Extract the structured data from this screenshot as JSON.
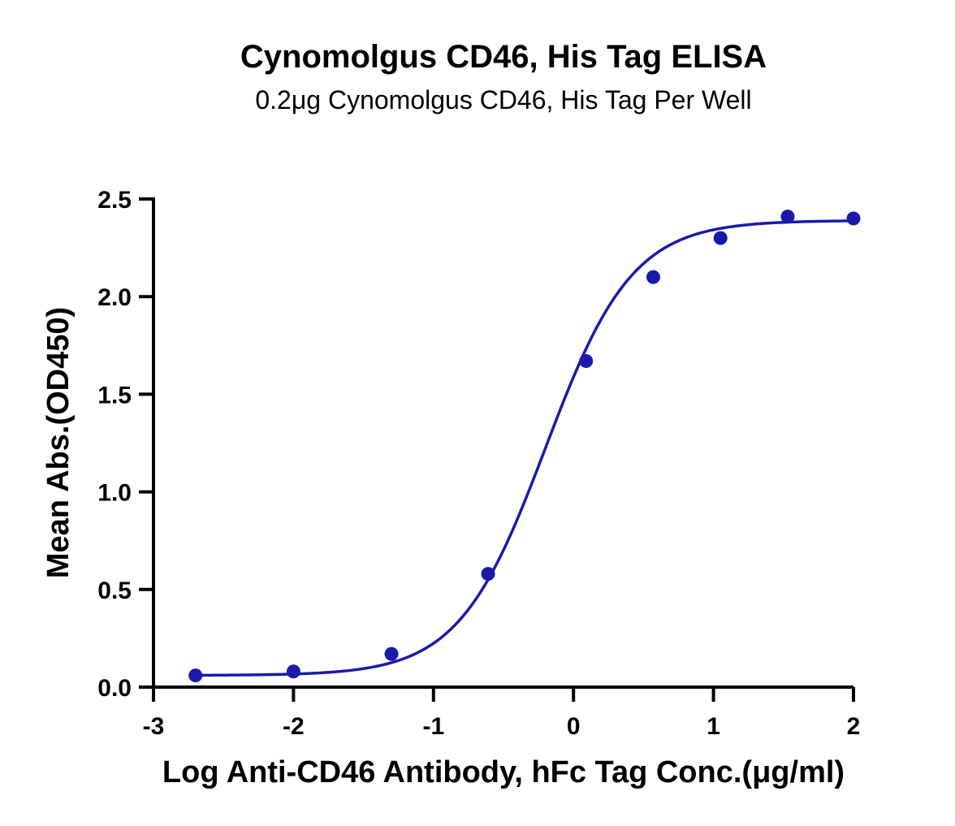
{
  "chart_data": {
    "type": "scatter",
    "title": "Cynomolgus CD46, His Tag ELISA",
    "subtitle": "0.2μg Cynomolgus CD46, His Tag Per Well",
    "xlabel": "Log Anti-CD46 Antibody, hFc Tag Conc.(μg/ml)",
    "ylabel": "Mean Abs.(OD450)",
    "xlim": [
      -3,
      2
    ],
    "ylim": [
      0,
      2.5
    ],
    "xticks": [
      "-3",
      "-2",
      "-1",
      "0",
      "1",
      "2"
    ],
    "yticks": [
      "0.0",
      "0.5",
      "1.0",
      "1.5",
      "2.0",
      "2.5"
    ],
    "grid": false,
    "color": "#1a1aaa",
    "points": {
      "x": [
        -2.7,
        -2.0,
        -1.3,
        -0.61,
        0.09,
        0.57,
        1.05,
        1.53,
        2.0
      ],
      "y": [
        0.06,
        0.08,
        0.17,
        0.58,
        1.67,
        2.1,
        2.3,
        2.41,
        2.4
      ]
    },
    "fit": {
      "model": "4PL",
      "bottom": 0.06,
      "top": 2.39,
      "logEC50": -0.2,
      "hill": 1.4
    }
  }
}
